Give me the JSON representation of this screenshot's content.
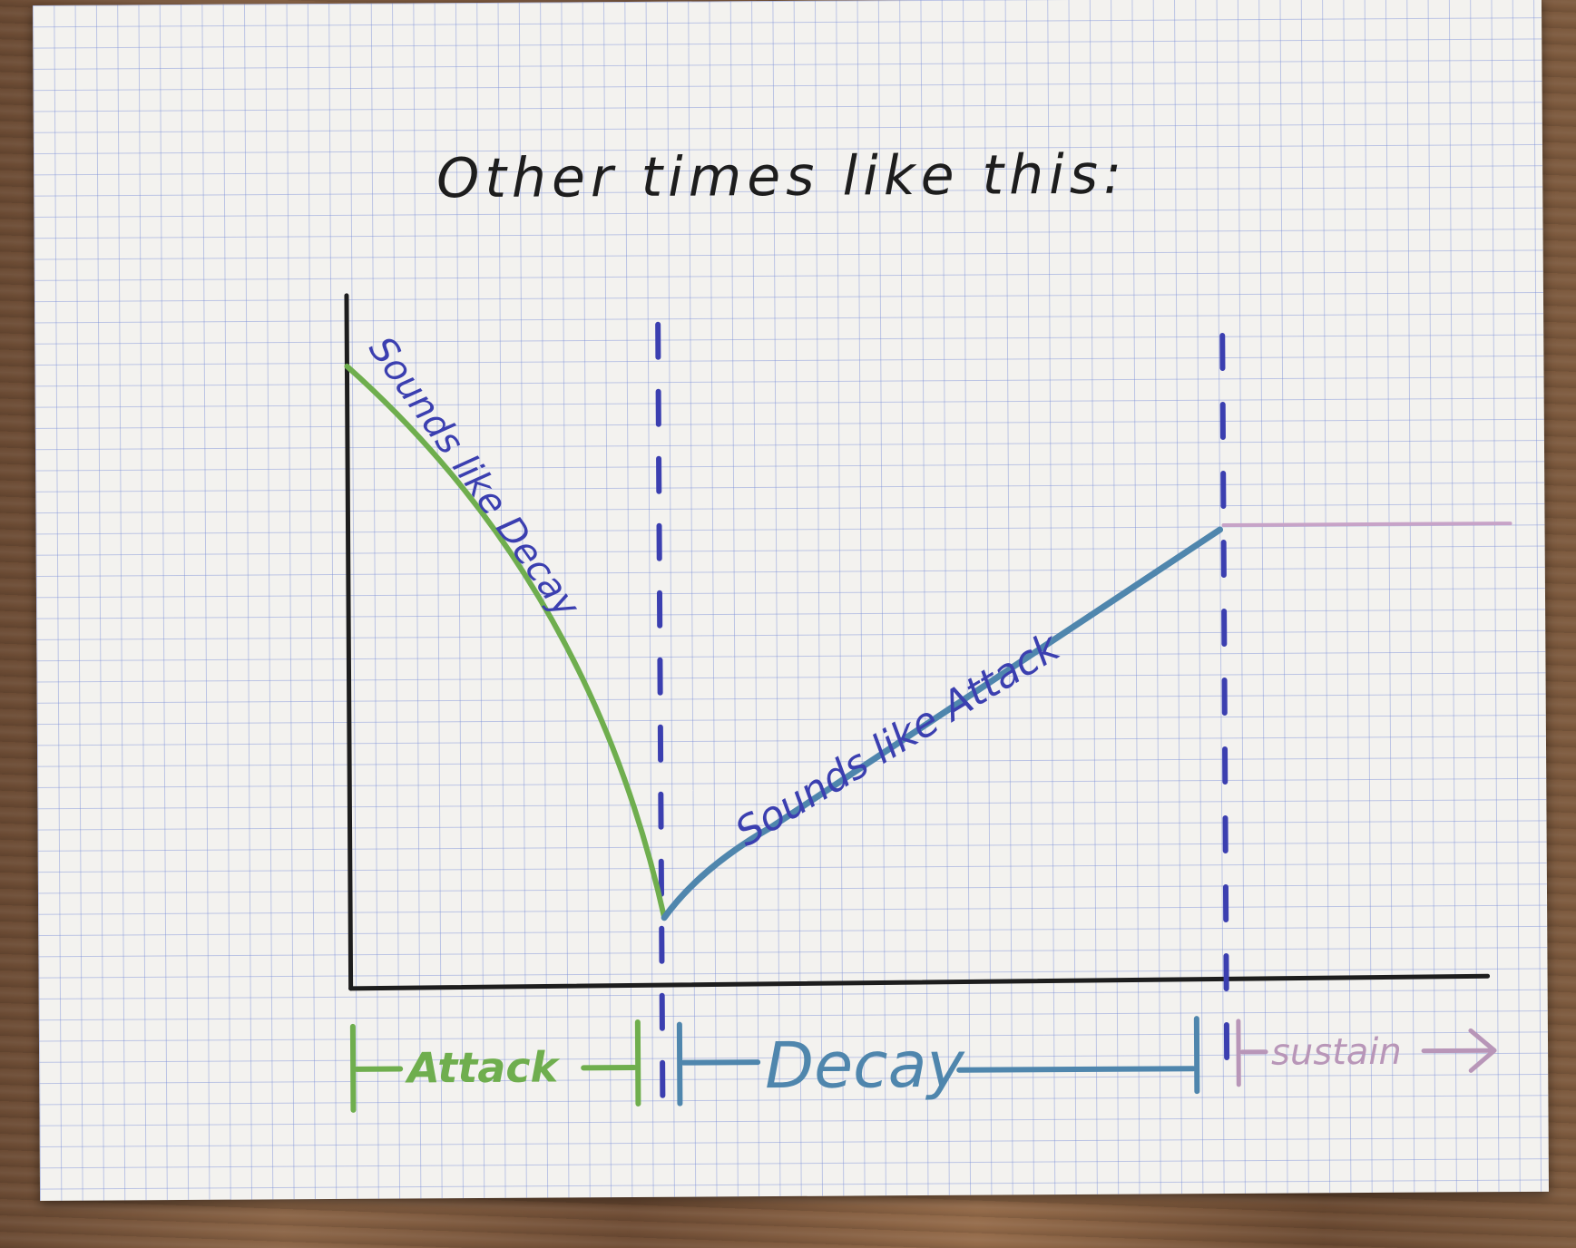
{
  "title": "Other times like this:",
  "curve_labels": {
    "attack_segment": "Sounds like Decay",
    "decay_segment": "Sounds like Attack"
  },
  "phases": [
    {
      "label": "Attack",
      "color": "#6fae4e"
    },
    {
      "label": "Decay",
      "color": "#4f86ad"
    },
    {
      "label": "sustain",
      "color": "#b896b8"
    }
  ],
  "colors": {
    "ink": "#1d1d1d",
    "marker_blue": "#3b3fb0",
    "attack_curve": "#6fae4e",
    "decay_curve": "#4f86ad",
    "sustain_line": "#c7a3c7"
  }
}
